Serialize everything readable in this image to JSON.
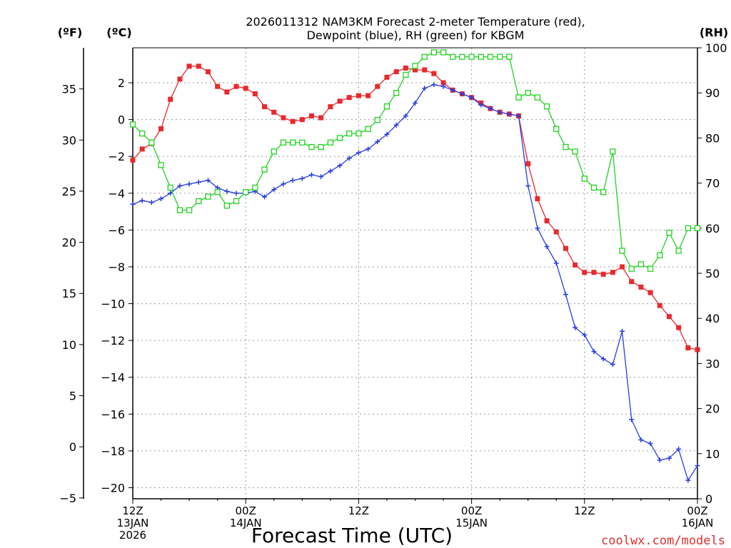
{
  "chart_data": {
    "type": "line",
    "title_line1": "2026011312 NAM3KM Forecast 2-meter Temperature (red),",
    "title_line2": "Dewpoint (blue), RH (green) for KBGM",
    "xlabel": "Forecast Time (UTC)",
    "watermark": "coolwx.com/models",
    "unit_labels": {
      "fahrenheit": "(ºF)",
      "celsius": "(ºC)",
      "rh": "(RH)"
    },
    "x_ticks": [
      {
        "hour": 0,
        "line1": "12Z",
        "line2": "13JAN",
        "line3": "2026"
      },
      {
        "hour": 12,
        "line1": "00Z",
        "line2": "14JAN",
        "line3": ""
      },
      {
        "hour": 24,
        "line1": "12Z",
        "line2": "",
        "line3": ""
      },
      {
        "hour": 36,
        "line1": "00Z",
        "line2": "15JAN",
        "line3": ""
      },
      {
        "hour": 48,
        "line1": "12Z",
        "line2": "",
        "line3": ""
      },
      {
        "hour": 60,
        "line1": "00Z",
        "line2": "16JAN",
        "line3": ""
      }
    ],
    "xlim": [
      0,
      60
    ],
    "ylim_c": [
      -20.6,
      3.9
    ],
    "ylim_rh": [
      0,
      100
    ],
    "c_ticks": [
      2,
      0,
      -2,
      -4,
      -6,
      -8,
      -10,
      -12,
      -14,
      -16,
      -18,
      -20
    ],
    "f_ticks": [
      35,
      30,
      25,
      20,
      15,
      10,
      5,
      0,
      -5
    ],
    "rh_ticks": [
      100,
      90,
      80,
      70,
      60,
      50,
      40,
      30,
      20,
      10,
      0
    ],
    "colors": {
      "temperature": "#e8292d",
      "dewpoint": "#2a3ee0",
      "rh": "#22d222",
      "grid": "#9a9a9a"
    },
    "series": [
      {
        "name": "Temperature",
        "unit": "C",
        "values": [
          -2.2,
          -1.6,
          -1.3,
          -0.5,
          1.1,
          2.2,
          2.9,
          2.9,
          2.6,
          1.8,
          1.5,
          1.8,
          1.7,
          1.4,
          0.7,
          0.4,
          0.1,
          -0.1,
          0.0,
          0.2,
          0.1,
          0.7,
          1.0,
          1.2,
          1.3,
          1.3,
          1.8,
          2.3,
          2.6,
          2.8,
          2.7,
          2.7,
          2.5,
          2.0,
          1.6,
          1.4,
          1.2,
          0.9,
          0.6,
          0.4,
          0.3,
          0.2,
          -2.4,
          -4.3,
          -5.5,
          -6.1,
          -7.0,
          -7.9,
          -8.3,
          -8.3,
          -8.4,
          -8.3,
          -8.0,
          -8.8,
          -9.1,
          -9.4,
          -10.1,
          -10.7,
          -11.3,
          -12.4,
          -12.5
        ]
      },
      {
        "name": "Dewpoint",
        "unit": "C",
        "values": [
          -4.6,
          -4.4,
          -4.5,
          -4.3,
          -4.0,
          -3.6,
          -3.5,
          -3.4,
          -3.3,
          -3.7,
          -3.9,
          -4.0,
          -4.0,
          -3.9,
          -4.2,
          -3.8,
          -3.5,
          -3.3,
          -3.2,
          -3.0,
          -3.1,
          -2.8,
          -2.5,
          -2.1,
          -1.8,
          -1.6,
          -1.2,
          -0.8,
          -0.3,
          0.2,
          0.9,
          1.7,
          1.9,
          1.8,
          1.6,
          1.4,
          1.2,
          0.8,
          0.6,
          0.4,
          0.3,
          0.2,
          -3.6,
          -5.9,
          -6.9,
          -7.8,
          -9.5,
          -11.3,
          -11.7,
          -12.6,
          -13.0,
          -13.3,
          -11.5,
          -16.3,
          -17.4,
          -17.6,
          -18.5,
          -18.4,
          -17.9,
          -19.6,
          -18.8
        ]
      },
      {
        "name": "RH",
        "unit": "%",
        "values": [
          83,
          81,
          79,
          74,
          69,
          64,
          64,
          66,
          67,
          68,
          65,
          66,
          68,
          69,
          73,
          77,
          79,
          79,
          79,
          78,
          78,
          79,
          80,
          81,
          81,
          82,
          84,
          87,
          90,
          94,
          96,
          98,
          99,
          99,
          98,
          98,
          98,
          98,
          98,
          98,
          98,
          89,
          90,
          89,
          87,
          82,
          78,
          77,
          71,
          69,
          68,
          77,
          55,
          51,
          52,
          51,
          54,
          59,
          55,
          60,
          60
        ]
      }
    ]
  }
}
